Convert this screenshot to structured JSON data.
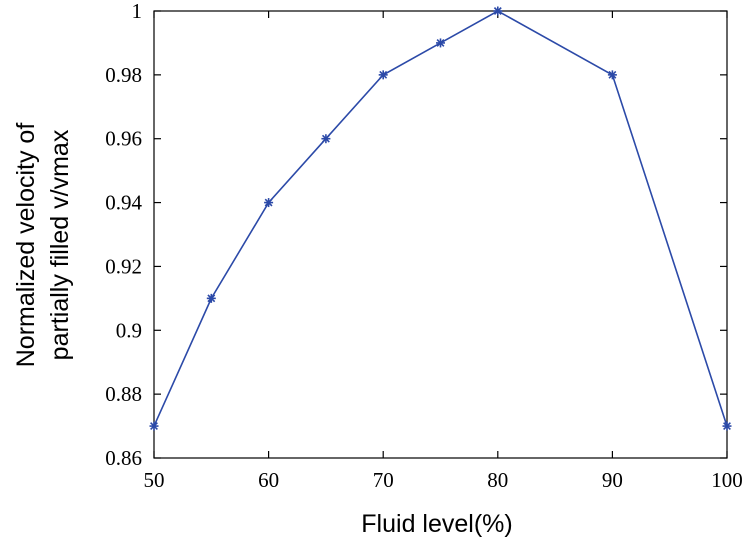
{
  "chart_data": {
    "type": "line",
    "title": "",
    "xlabel": "Fluid level(%)",
    "ylabel_lines": [
      "Normalized velocity of",
      "partially filled v/vmax"
    ],
    "xlim": [
      50,
      100
    ],
    "ylim": [
      0.86,
      1.0
    ],
    "xticks": [
      50,
      60,
      70,
      80,
      90,
      100
    ],
    "xtick_labels": [
      "50",
      "60",
      "70",
      "80",
      "90",
      "100"
    ],
    "yticks": [
      0.86,
      0.88,
      0.9,
      0.92,
      0.94,
      0.96,
      0.98,
      1.0
    ],
    "ytick_labels": [
      "0.86",
      "0.88",
      "0.9",
      "0.92",
      "0.94",
      "0.96",
      "0.98",
      "1"
    ],
    "grid": false,
    "series": [
      {
        "x": [
          50,
          55,
          60,
          65,
          70,
          75,
          80,
          90,
          100
        ],
        "values": [
          0.87,
          0.91,
          0.94,
          0.96,
          0.98,
          0.99,
          1.0,
          0.98,
          0.87
        ],
        "color": "#2c4aa8",
        "marker": "asterisk"
      }
    ]
  }
}
